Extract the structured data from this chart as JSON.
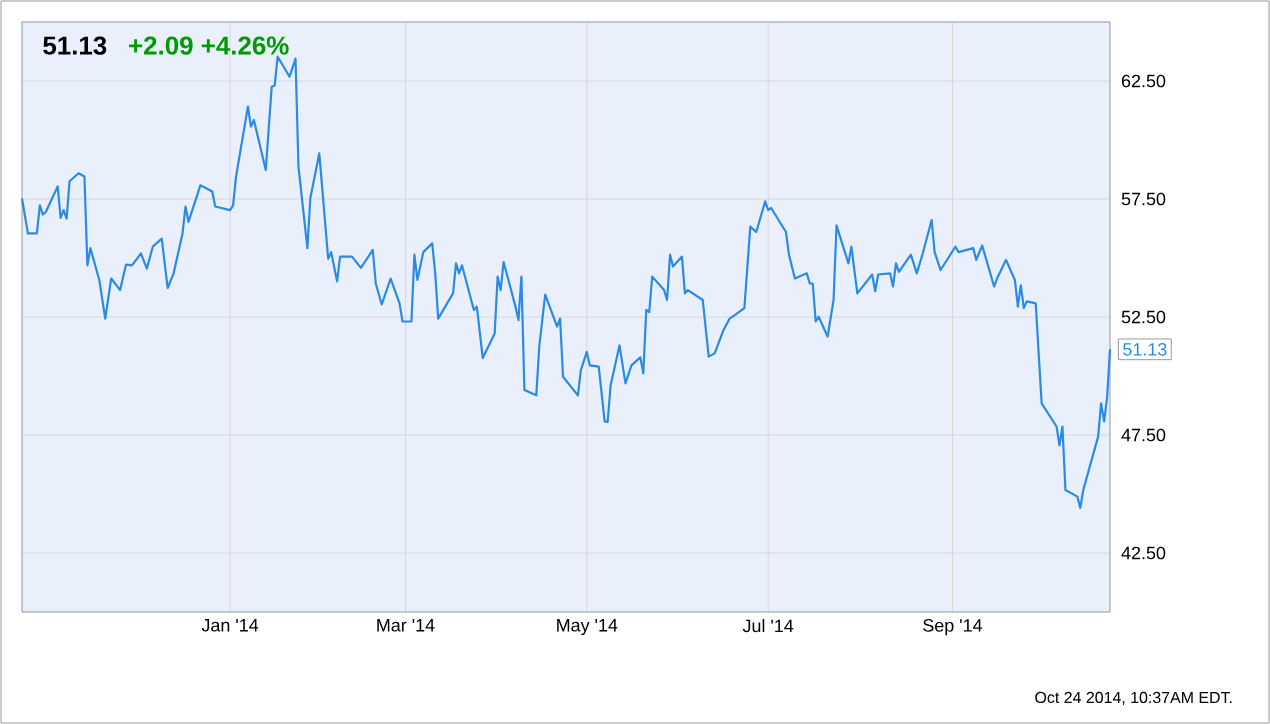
{
  "chart_data": {
    "type": "line",
    "title": "51.13",
    "subtitle": "+2.09  +4.26%",
    "annotations": [
      {
        "text": "51.13",
        "x": "2014-10-24",
        "y": 51.13
      },
      "Oct 24 2014, 10:37AM EDT."
    ],
    "xlim": [
      "2013-10-23",
      "2014-10-24"
    ],
    "xticks": [
      {
        "value": "2014-01-01",
        "label": "Jan '14"
      },
      {
        "value": "2014-03-01",
        "label": "Mar '14"
      },
      {
        "value": "2014-05-01",
        "label": "May '14"
      },
      {
        "value": "2014-07-01",
        "label": "Jul '14"
      },
      {
        "value": "2014-09-01",
        "label": "Sep '14"
      }
    ],
    "ylim": [
      40,
      65
    ],
    "yticks": [
      {
        "value": 42.5,
        "label": "42.50"
      },
      {
        "value": 47.5,
        "label": "47.50"
      },
      {
        "value": 52.5,
        "label": "52.50"
      },
      {
        "value": 57.5,
        "label": "57.50"
      },
      {
        "value": 62.5,
        "label": "62.50"
      }
    ],
    "grid": true,
    "x": [
      "2013-10-23",
      "2013-10-25",
      "2013-10-28",
      "2013-10-29",
      "2013-10-30",
      "2013-10-31",
      "2013-11-04",
      "2013-11-05",
      "2013-11-06",
      "2013-11-07",
      "2013-11-08",
      "2013-11-11",
      "2013-11-13",
      "2013-11-14",
      "2013-11-15",
      "2013-11-18",
      "2013-11-20",
      "2013-11-22",
      "2013-11-25",
      "2013-11-27",
      "2013-11-29",
      "2013-12-02",
      "2013-12-04",
      "2013-12-06",
      "2013-12-09",
      "2013-12-11",
      "2013-12-13",
      "2013-12-16",
      "2013-12-17",
      "2013-12-18",
      "2013-12-22",
      "2013-12-26",
      "2013-12-27",
      "2014-01-01",
      "2014-01-02",
      "2014-01-03",
      "2014-01-07",
      "2014-01-08",
      "2014-01-09",
      "2014-01-13",
      "2014-01-15",
      "2014-01-16",
      "2014-01-17",
      "2014-01-21",
      "2014-01-23",
      "2014-01-24",
      "2014-01-27",
      "2014-01-28",
      "2014-01-31",
      "2014-02-03",
      "2014-02-04",
      "2014-02-06",
      "2014-02-07",
      "2014-02-11",
      "2014-02-14",
      "2014-02-18",
      "2014-02-19",
      "2014-02-21",
      "2014-02-24",
      "2014-02-27",
      "2014-02-28",
      "2014-03-03",
      "2014-03-04",
      "2014-03-05",
      "2014-03-07",
      "2014-03-10",
      "2014-03-11",
      "2014-03-12",
      "2014-03-17",
      "2014-03-18",
      "2014-03-19",
      "2014-03-20",
      "2014-03-24",
      "2014-03-25",
      "2014-03-27",
      "2014-03-31",
      "2014-04-01",
      "2014-04-02",
      "2014-04-03",
      "2014-04-07",
      "2014-04-08",
      "2014-04-09",
      "2014-04-10",
      "2014-04-14",
      "2014-04-15",
      "2014-04-17",
      "2014-04-21",
      "2014-04-22",
      "2014-04-23",
      "2014-04-28",
      "2014-04-29",
      "2014-05-01",
      "2014-05-02",
      "2014-05-05",
      "2014-05-07",
      "2014-05-08",
      "2014-05-09",
      "2014-05-12",
      "2014-05-14",
      "2014-05-16",
      "2014-05-19",
      "2014-05-20",
      "2014-05-21",
      "2014-05-22",
      "2014-05-23",
      "2014-05-27",
      "2014-05-28",
      "2014-05-29",
      "2014-05-30",
      "2014-06-02",
      "2014-06-03",
      "2014-06-04",
      "2014-06-09",
      "2014-06-11",
      "2014-06-13",
      "2014-06-16",
      "2014-06-18",
      "2014-06-20",
      "2014-06-23",
      "2014-06-25",
      "2014-06-27",
      "2014-06-30",
      "2014-07-01",
      "2014-07-02",
      "2014-07-07",
      "2014-07-08",
      "2014-07-10",
      "2014-07-14",
      "2014-07-15",
      "2014-07-16",
      "2014-07-17",
      "2014-07-18",
      "2014-07-21",
      "2014-07-23",
      "2014-07-24",
      "2014-07-28",
      "2014-07-29",
      "2014-07-31",
      "2014-08-05",
      "2014-08-06",
      "2014-08-07",
      "2014-08-11",
      "2014-08-12",
      "2014-08-13",
      "2014-08-14",
      "2014-08-18",
      "2014-08-20",
      "2014-08-22",
      "2014-08-25",
      "2014-08-26",
      "2014-08-28",
      "2014-09-02",
      "2014-09-03",
      "2014-09-08",
      "2014-09-09",
      "2014-09-11",
      "2014-09-15",
      "2014-09-16",
      "2014-09-19",
      "2014-09-22",
      "2014-09-23",
      "2014-09-24",
      "2014-09-25",
      "2014-09-26",
      "2014-09-29",
      "2014-10-01",
      "2014-10-06",
      "2014-10-07",
      "2014-10-08",
      "2014-10-09",
      "2014-10-13",
      "2014-10-14",
      "2014-10-15",
      "2014-10-20",
      "2014-10-21",
      "2014-10-22",
      "2014-10-23",
      "2014-10-24"
    ],
    "series": [
      {
        "color": "#2a8ae8",
        "values": [
          57.52,
          56.04,
          56.04,
          57.23,
          56.84,
          56.95,
          58.03,
          56.7,
          57.03,
          56.67,
          58.25,
          58.59,
          58.45,
          54.69,
          55.42,
          54.07,
          52.43,
          54.13,
          53.64,
          54.72,
          54.69,
          55.19,
          54.55,
          55.48,
          55.82,
          53.73,
          54.35,
          56.04,
          57.18,
          56.53,
          58.08,
          57.82,
          57.18,
          57.03,
          57.23,
          58.45,
          61.42,
          60.57,
          60.85,
          58.73,
          62.26,
          62.31,
          63.53,
          62.68,
          63.45,
          58.87,
          55.42,
          57.54,
          59.43,
          54.97,
          55.25,
          54.01,
          55.06,
          55.06,
          54.58,
          55.34,
          53.92,
          53.03,
          54.13,
          53.08,
          52.31,
          52.31,
          55.14,
          54.07,
          55.25,
          55.62,
          54.35,
          52.43,
          53.5,
          54.77,
          54.35,
          54.69,
          52.8,
          52.94,
          50.76,
          51.8,
          54.21,
          53.64,
          54.83,
          52.94,
          52.37,
          54.21,
          49.41,
          49.18,
          51.25,
          53.45,
          52.09,
          52.43,
          49.97,
          49.18,
          50.25,
          51.02,
          50.45,
          50.4,
          48.08,
          48.05,
          49.6,
          51.3,
          49.69,
          50.45,
          50.79,
          50.11,
          52.8,
          52.71,
          54.21,
          53.64,
          53.22,
          55.14,
          54.64,
          55.06,
          53.5,
          53.64,
          53.22,
          50.82,
          50.96,
          51.95,
          52.43,
          52.6,
          52.88,
          56.33,
          56.1,
          57.4,
          57.03,
          57.12,
          56.1,
          55.14,
          54.13,
          54.35,
          53.92,
          53.92,
          52.31,
          52.51,
          51.67,
          53.22,
          56.38,
          54.77,
          55.48,
          53.5,
          54.3,
          53.59,
          54.3,
          54.35,
          53.79,
          54.77,
          54.41,
          55.14,
          54.35,
          55.19,
          56.61,
          55.25,
          54.49,
          55.48,
          55.25,
          55.42,
          54.92,
          55.53,
          53.79,
          54.13,
          54.92,
          54.07,
          52.94,
          53.84,
          52.88,
          53.16,
          53.08,
          48.84,
          47.86,
          47.06,
          47.86,
          45.17,
          44.89,
          44.41,
          45.17,
          47.43,
          48.84,
          48.08,
          49.05,
          51.13
        ]
      }
    ]
  }
}
